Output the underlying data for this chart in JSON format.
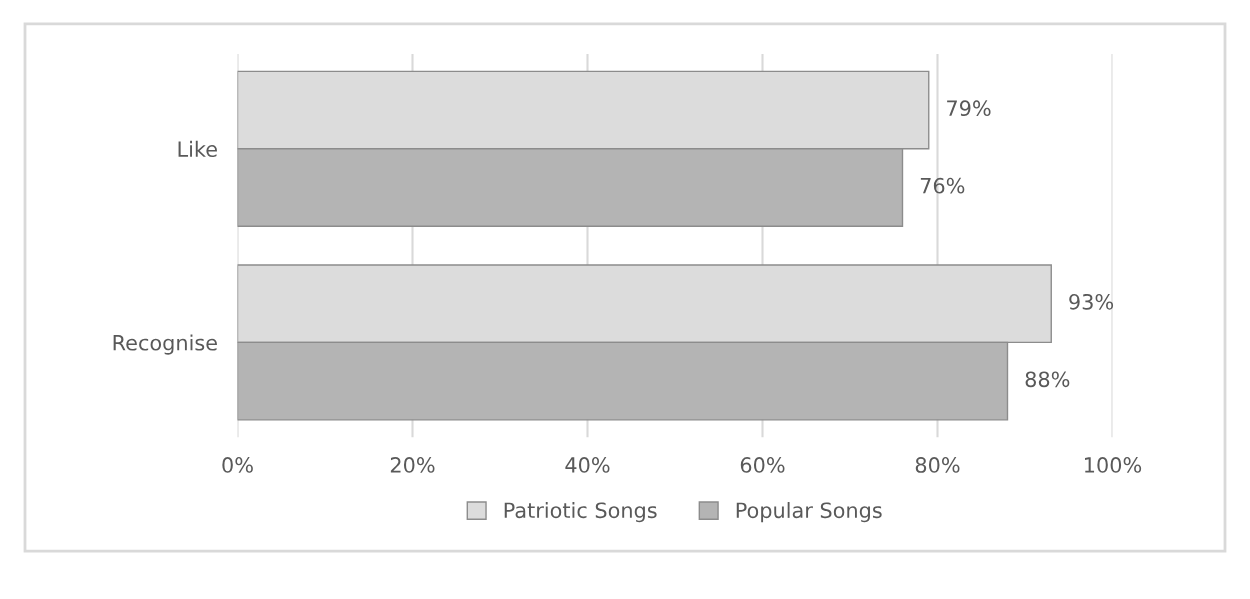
{
  "chart_data": {
    "type": "bar",
    "orientation": "horizontal",
    "categories": [
      "Like",
      "Recognise"
    ],
    "series": [
      {
        "name": "Patriotic Songs",
        "color": "#dcdcdc",
        "values": [
          79,
          93
        ],
        "value_labels": [
          "79%",
          "93%"
        ]
      },
      {
        "name": "Popular Songs",
        "color": "#b4b4b4",
        "values": [
          76,
          88
        ],
        "value_labels": [
          "76%",
          "88%"
        ]
      }
    ],
    "xlim": [
      0,
      100
    ],
    "xticks": [
      {
        "value": 0,
        "label": "0%"
      },
      {
        "value": 20,
        "label": "20%"
      },
      {
        "value": 40,
        "label": "40%"
      },
      {
        "value": 60,
        "label": "60%"
      },
      {
        "value": 80,
        "label": "80%"
      },
      {
        "value": 100,
        "label": "100%"
      }
    ],
    "grid": "x",
    "legend": "bottom"
  }
}
